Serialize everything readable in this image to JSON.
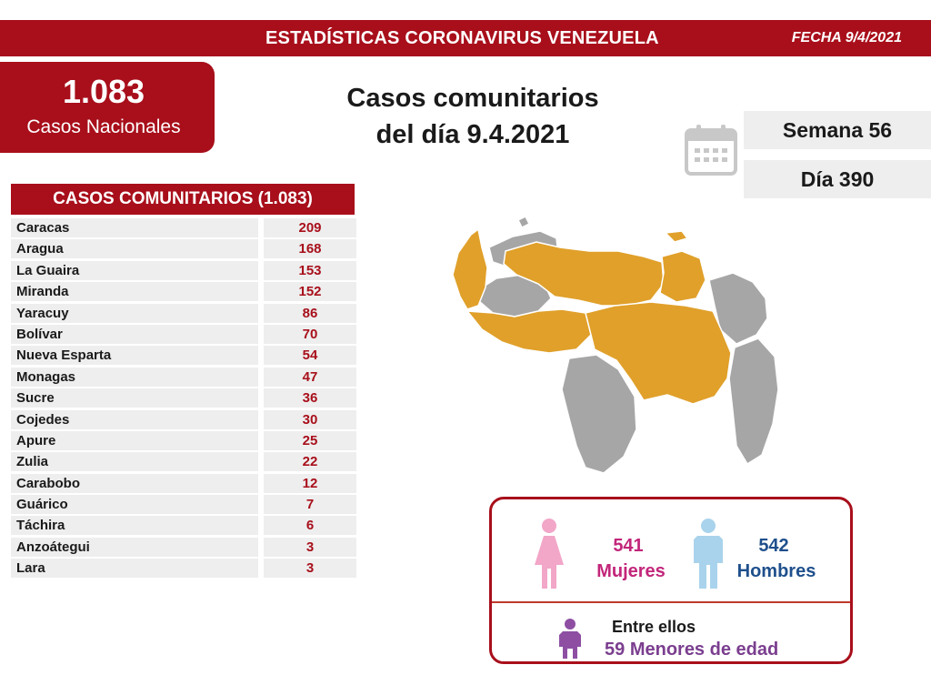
{
  "header": {
    "title": "ESTADÍSTICAS CORONAVIRUS VENEZUELA",
    "date": "FECHA 9/4/2021"
  },
  "national": {
    "number": "1.083",
    "label": "Casos Nacionales"
  },
  "main_title": {
    "line1": "Casos comunitarios",
    "line2": "del día 9.4.2021"
  },
  "week": "Semana 56",
  "day": "Día 390",
  "table": {
    "header": "CASOS COMUNITARIOS (1.083)",
    "rows": [
      {
        "name": "Caracas",
        "value": "209"
      },
      {
        "name": "Aragua",
        "value": "168"
      },
      {
        "name": "La Guaira",
        "value": "153"
      },
      {
        "name": "Miranda",
        "value": "152"
      },
      {
        "name": "Yaracuy",
        "value": "86"
      },
      {
        "name": "Bolívar",
        "value": "70"
      },
      {
        "name": "Nueva Esparta",
        "value": "54"
      },
      {
        "name": "Monagas",
        "value": "47"
      },
      {
        "name": "Sucre",
        "value": "36"
      },
      {
        "name": "Cojedes",
        "value": "30"
      },
      {
        "name": "Apure",
        "value": "25"
      },
      {
        "name": "Zulia",
        "value": "22"
      },
      {
        "name": "Carabobo",
        "value": "12"
      },
      {
        "name": "Guárico",
        "value": "7"
      },
      {
        "name": "Táchira",
        "value": "6"
      },
      {
        "name": "Anzoátegui",
        "value": "3"
      },
      {
        "name": "Lara",
        "value": "3"
      }
    ]
  },
  "gender": {
    "women_count": "541",
    "women_label": "Mujeres",
    "men_count": "542",
    "men_label": "Hombres",
    "between_label": "Entre ellos",
    "minors_count": "59",
    "minors_label": "Menores de edad"
  },
  "colors": {
    "brand_red": "#a80f1b",
    "map_affected": "#e0a02a",
    "map_unaffected": "#a6a6a6",
    "women": "#f2a6c8",
    "men": "#a9d3ec",
    "minors": "#8e4fa3"
  },
  "icons": {
    "calendar": "calendar-icon",
    "woman": "woman-icon",
    "man": "man-icon",
    "child": "child-icon"
  }
}
